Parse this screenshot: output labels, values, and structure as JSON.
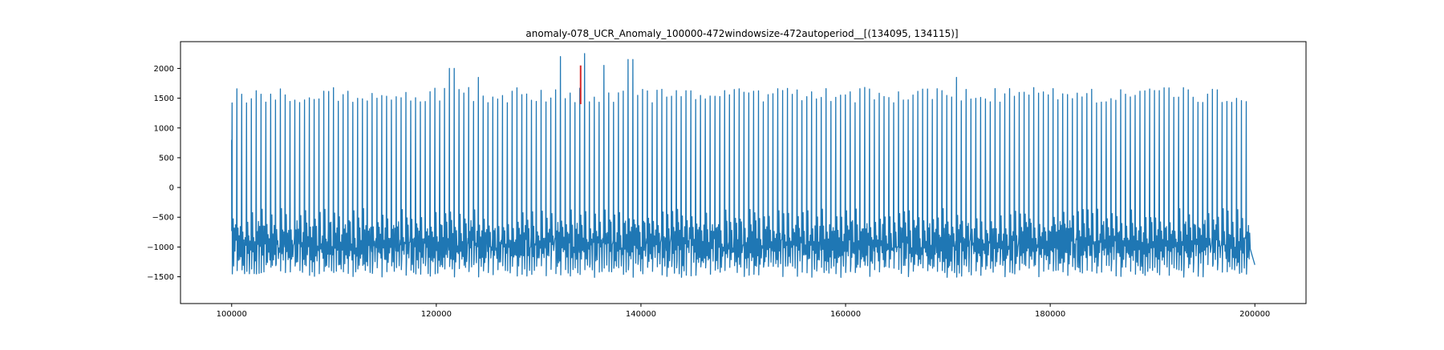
{
  "chart_data": {
    "type": "line",
    "title": "anomaly-078_UCR_Anomaly_100000-472windowsize-472autoperiod__[(134095, 134115)]",
    "xlabel": "",
    "ylabel": "",
    "xlim": [
      95000,
      205000
    ],
    "ylim": [
      -1950,
      2450
    ],
    "x_ticks": [
      100000,
      120000,
      140000,
      160000,
      180000,
      200000
    ],
    "y_ticks": [
      -1500,
      -1000,
      -500,
      0,
      500,
      1000,
      1500,
      2000
    ],
    "grid": false,
    "legend": "none",
    "series": [
      {
        "x_start": 100000,
        "x_end": 200000,
        "approx_cycle_length": 472,
        "typical_peak": 1550,
        "typical_trough": -1400,
        "baseline_range": [
          -1100,
          -700
        ],
        "y_start": 800,
        "y_end": -1300,
        "color": "#1f77b4",
        "notable_peaks": [
          {
            "x": 121500,
            "y": 2000
          },
          {
            "x": 124000,
            "y": 1850
          },
          {
            "x": 132300,
            "y": 2200
          },
          {
            "x": 134600,
            "y": 2250
          },
          {
            "x": 136400,
            "y": 2050
          },
          {
            "x": 139000,
            "y": 2150
          },
          {
            "x": 170800,
            "y": 1850
          },
          {
            "x": 195900,
            "y": 1650
          }
        ]
      }
    ],
    "anomaly": {
      "range": [
        134095,
        134115
      ],
      "y_range": [
        1400,
        2050
      ],
      "color": "#d62728"
    }
  }
}
